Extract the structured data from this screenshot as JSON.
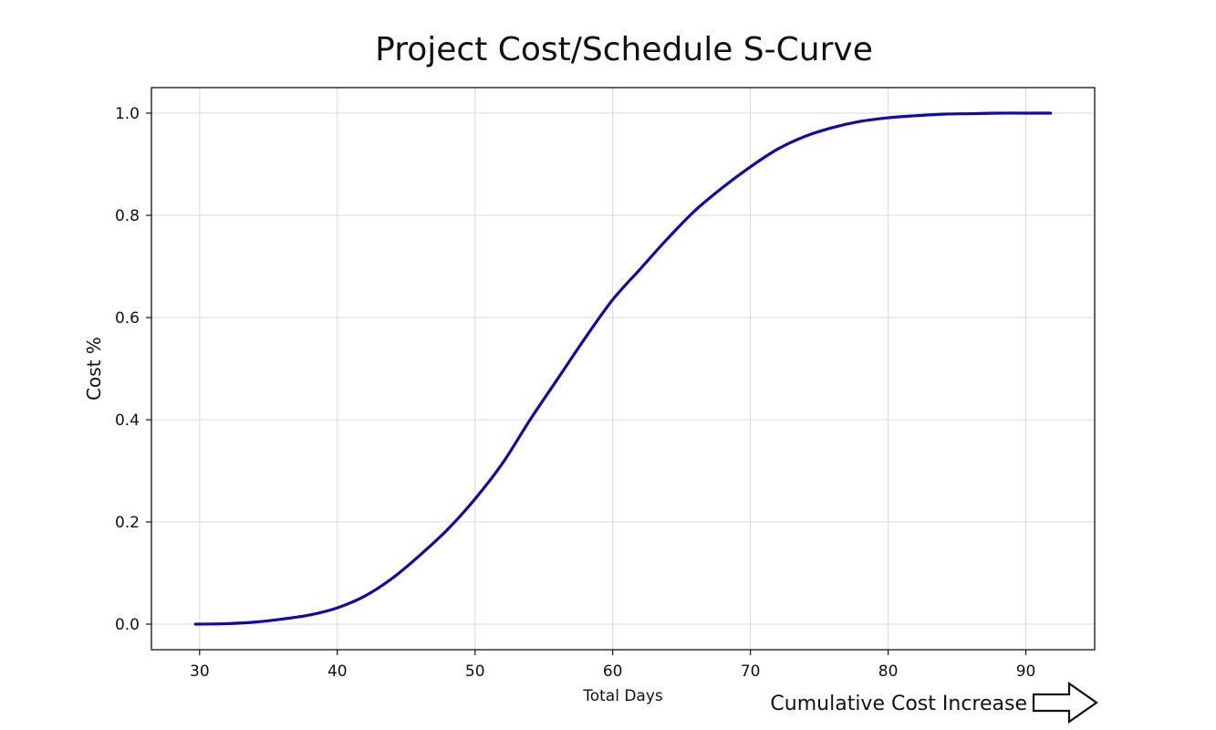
{
  "chart_data": {
    "type": "line",
    "title": "Project Cost/Schedule S-Curve",
    "xlabel": "Total Days",
    "ylabel": "Cost %",
    "xlim": [
      26.5,
      95
    ],
    "ylim": [
      -0.05,
      1.05
    ],
    "xticks": [
      30,
      40,
      50,
      60,
      70,
      80,
      90
    ],
    "yticks": [
      0.0,
      0.2,
      0.4,
      0.6,
      0.8,
      1.0
    ],
    "xtick_labels": [
      "30",
      "40",
      "50",
      "60",
      "70",
      "80",
      "90"
    ],
    "ytick_labels": [
      "0.0",
      "0.2",
      "0.4",
      "0.6",
      "0.8",
      "1.0"
    ],
    "grid": true,
    "series": [
      {
        "color": "#0d0aa8",
        "x": [
          29.7,
          32,
          34,
          36,
          38,
          40,
          42,
          44,
          46,
          48,
          50,
          52,
          54,
          56,
          58,
          60,
          62,
          64,
          66,
          68,
          70,
          72,
          74,
          76,
          78,
          80,
          82,
          84,
          86,
          88,
          90,
          91.8
        ],
        "y": [
          0.0,
          0.001,
          0.004,
          0.01,
          0.018,
          0.032,
          0.055,
          0.09,
          0.135,
          0.185,
          0.245,
          0.315,
          0.4,
          0.48,
          0.56,
          0.635,
          0.695,
          0.755,
          0.81,
          0.855,
          0.895,
          0.93,
          0.955,
          0.972,
          0.984,
          0.991,
          0.995,
          0.998,
          0.999,
          1.0,
          1.0,
          1.0
        ]
      }
    ],
    "annotation": {
      "text": "Cumulative Cost Increase",
      "icon": "right-arrow-icon"
    }
  }
}
